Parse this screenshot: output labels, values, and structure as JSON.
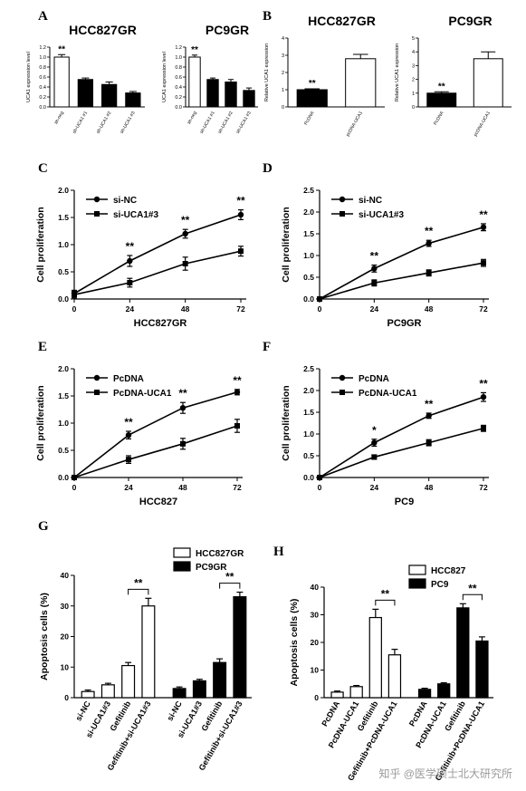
{
  "panels": {
    "A": {
      "label": "A",
      "charts": [
        {
          "title": "HCC827GR",
          "ylabel": "UCA1 expression level",
          "ylim": [
            0,
            1.2
          ],
          "yticks": [
            0.0,
            0.2,
            0.4,
            0.6,
            0.8,
            1.0,
            1.2
          ],
          "categories": [
            "sh-neg",
            "sh-UCA1 #1",
            "sh-UCA1 #2",
            "sh-UCA1 #3"
          ],
          "values": [
            1.0,
            0.55,
            0.45,
            0.28
          ],
          "errors": [
            0.05,
            0.03,
            0.05,
            0.03
          ],
          "fills": [
            "#ffffff",
            "#000000",
            "#000000",
            "#000000"
          ],
          "sig": [
            {
              "bar": 0,
              "text": "**"
            }
          ]
        },
        {
          "title": "PC9GR",
          "ylabel": "UCA1 expression level",
          "ylim": [
            0,
            1.2
          ],
          "yticks": [
            0.0,
            0.2,
            0.4,
            0.6,
            0.8,
            1.0,
            1.2
          ],
          "categories": [
            "sh-neg",
            "sh-UCA1 #1",
            "sh-UCA1 #2",
            "sh-UCA1 #3"
          ],
          "values": [
            1.0,
            0.55,
            0.5,
            0.33
          ],
          "errors": [
            0.04,
            0.03,
            0.05,
            0.05
          ],
          "fills": [
            "#ffffff",
            "#000000",
            "#000000",
            "#000000"
          ],
          "sig": [
            {
              "bar": 0,
              "text": "**"
            }
          ]
        }
      ]
    },
    "B": {
      "label": "B",
      "charts": [
        {
          "title": "HCC827GR",
          "ylabel": "Relative UCA1 expression",
          "ylim": [
            0,
            4
          ],
          "yticks": [
            0,
            1,
            2,
            3,
            4
          ],
          "categories": [
            "PcDNA",
            "pcDNA-UCA1"
          ],
          "values": [
            1.0,
            2.8
          ],
          "errors": [
            0.05,
            0.25
          ],
          "fills": [
            "#000000",
            "#ffffff"
          ],
          "sig": [
            {
              "bar": 0,
              "text": "**"
            }
          ]
        },
        {
          "title": "PC9GR",
          "ylabel": "Relative UCA1 expression",
          "ylim": [
            0,
            5
          ],
          "yticks": [
            0,
            1,
            2,
            3,
            4,
            5
          ],
          "categories": [
            "PcDNA",
            "pcDNA-UCA1"
          ],
          "values": [
            1.0,
            3.5
          ],
          "errors": [
            0.1,
            0.5
          ],
          "fills": [
            "#000000",
            "#ffffff"
          ],
          "sig": [
            {
              "bar": 0,
              "text": "**"
            }
          ]
        }
      ]
    },
    "lines": [
      {
        "label": "C",
        "xlabel": "HCC827GR",
        "ylabel": "Cell proliferation",
        "ylim": [
          0,
          2.0
        ],
        "yticks": [
          "0.0",
          "0.5",
          "1.0",
          "1.5",
          "2.0"
        ],
        "x": [
          0,
          24,
          48,
          72
        ],
        "series": [
          {
            "name": "si-NC",
            "marker": "circle",
            "values": [
              0.1,
              0.7,
              1.2,
              1.55
            ],
            "errors": [
              0.06,
              0.1,
              0.08,
              0.09
            ]
          },
          {
            "name": "si-UCA1#3",
            "marker": "square",
            "values": [
              0.08,
              0.3,
              0.65,
              0.88
            ],
            "errors": [
              0.06,
              0.08,
              0.12,
              0.09
            ]
          }
        ],
        "sig": [
          {
            "x": 24,
            "text": "**"
          },
          {
            "x": 48,
            "text": "**"
          },
          {
            "x": 72,
            "text": "**"
          }
        ]
      },
      {
        "label": "D",
        "xlabel": "PC9GR",
        "ylabel": "Cell proliferation",
        "ylim": [
          0,
          2.5
        ],
        "yticks": [
          "0.0",
          "0.5",
          "1.0",
          "1.5",
          "2.0",
          "2.5"
        ],
        "x": [
          0,
          24,
          48,
          72
        ],
        "series": [
          {
            "name": "si-NC",
            "marker": "circle",
            "values": [
              0.0,
              0.7,
              1.28,
              1.65
            ],
            "errors": [
              0.02,
              0.08,
              0.07,
              0.08
            ]
          },
          {
            "name": "si-UCA1#3",
            "marker": "square",
            "values": [
              0.0,
              0.37,
              0.6,
              0.83
            ],
            "errors": [
              0.02,
              0.07,
              0.07,
              0.08
            ]
          }
        ],
        "sig": [
          {
            "x": 24,
            "text": "**"
          },
          {
            "x": 48,
            "text": "**"
          },
          {
            "x": 72,
            "text": "**"
          }
        ]
      },
      {
        "label": "E",
        "xlabel": "HCC827",
        "ylabel": "Cell proliferation",
        "ylim": [
          0,
          2.0
        ],
        "yticks": [
          "0.0",
          "0.5",
          "1.0",
          "1.5",
          "2.0"
        ],
        "x": [
          0,
          24,
          48,
          72
        ],
        "series": [
          {
            "name": "PcDNA",
            "marker": "circle",
            "values": [
              0.0,
              0.78,
              1.28,
              1.57
            ],
            "errors": [
              0.02,
              0.07,
              0.1,
              0.05
            ]
          },
          {
            "name": "PcDNA-UCA1",
            "marker": "square",
            "values": [
              0.0,
              0.33,
              0.62,
              0.95
            ],
            "errors": [
              0.02,
              0.07,
              0.1,
              0.12
            ]
          }
        ],
        "sig": [
          {
            "x": 24,
            "text": "**"
          },
          {
            "x": 48,
            "text": "**"
          },
          {
            "x": 72,
            "text": "**"
          }
        ]
      },
      {
        "label": "F",
        "xlabel": "PC9",
        "ylabel": "Cell proliferation",
        "ylim": [
          0,
          2.5
        ],
        "yticks": [
          "0.0",
          "0.5",
          "1.0",
          "1.5",
          "2.0",
          "2.5"
        ],
        "x": [
          0,
          24,
          48,
          72
        ],
        "series": [
          {
            "name": "PcDNA",
            "marker": "circle",
            "values": [
              0.0,
              0.8,
              1.42,
              1.85
            ],
            "errors": [
              0.02,
              0.08,
              0.06,
              0.1
            ]
          },
          {
            "name": "PcDNA-UCA1",
            "marker": "square",
            "values": [
              0.0,
              0.47,
              0.8,
              1.13
            ],
            "errors": [
              0.02,
              0.05,
              0.07,
              0.07
            ]
          }
        ],
        "sig": [
          {
            "x": 24,
            "text": "*"
          },
          {
            "x": 48,
            "text": "**"
          },
          {
            "x": 72,
            "text": "**"
          }
        ]
      }
    ],
    "apoptosis": [
      {
        "label": "G",
        "ylabel": "Apoptosis cells (%)",
        "ylim": [
          0,
          40
        ],
        "yticks": [
          0,
          10,
          20,
          30,
          40
        ],
        "legend": [
          {
            "name": "HCC827GR",
            "fill": "#ffffff"
          },
          {
            "name": "PC9GR",
            "fill": "#000000"
          }
        ],
        "categories": [
          "si-NC",
          "si-UCA1#3",
          "Gefitinib",
          "Gefitinib+si-UCA1#3",
          "si-NC",
          "si-UCA1#3",
          "Gefitinib",
          "Gefitinib+si-UCA1#3"
        ],
        "values": [
          2.0,
          4.2,
          10.5,
          30.0,
          3.0,
          5.5,
          11.5,
          33.0
        ],
        "errors": [
          0.5,
          0.5,
          1.0,
          2.5,
          0.5,
          0.5,
          1.2,
          1.5
        ],
        "fills": [
          "#ffffff",
          "#ffffff",
          "#ffffff",
          "#ffffff",
          "#000000",
          "#000000",
          "#000000",
          "#000000"
        ],
        "brackets": [
          {
            "from": 2,
            "to": 3,
            "text": "**"
          },
          {
            "from": 6,
            "to": 7,
            "text": "**"
          }
        ]
      },
      {
        "label": "H",
        "ylabel": "Apoptosis cells (%)",
        "ylim": [
          0,
          40
        ],
        "yticks": [
          0,
          10,
          20,
          30,
          40
        ],
        "legend": [
          {
            "name": "HCC827",
            "fill": "#ffffff"
          },
          {
            "name": "PC9",
            "fill": "#000000"
          }
        ],
        "categories": [
          "PcDNA",
          "PcDNA-UCA1",
          "Gefitinib",
          "Gefitinib+PcDNA-UCA1",
          "PcDNA",
          "PcDNA-UCA1",
          "Gefitinib",
          "Gefitinib+PcDNA-UCA1"
        ],
        "values": [
          2.0,
          4.0,
          29.0,
          15.5,
          3.0,
          5.0,
          32.5,
          20.5
        ],
        "errors": [
          0.4,
          0.4,
          3.0,
          2.0,
          0.4,
          0.4,
          1.5,
          1.5
        ],
        "fills": [
          "#ffffff",
          "#ffffff",
          "#ffffff",
          "#ffffff",
          "#000000",
          "#000000",
          "#000000",
          "#000000"
        ],
        "brackets": [
          {
            "from": 2,
            "to": 3,
            "text": "**"
          },
          {
            "from": 6,
            "to": 7,
            "text": "**"
          }
        ]
      }
    ]
  },
  "watermark": "知乎 @医学硕士北大研究所"
}
